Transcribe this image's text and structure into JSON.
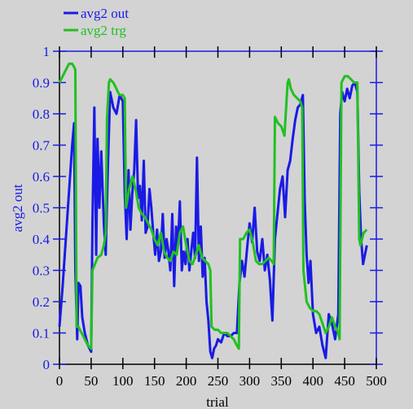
{
  "chart_data": {
    "type": "line",
    "xlabel": "trial",
    "ylabel": "avg2 out",
    "xlim": [
      0,
      500
    ],
    "ylim": [
      0,
      1
    ],
    "x_ticks": [
      0,
      50,
      100,
      150,
      200,
      250,
      300,
      350,
      400,
      450,
      500
    ],
    "y_ticks": [
      0,
      0.1,
      0.2,
      0.3,
      0.4,
      0.5,
      0.6,
      0.7,
      0.8,
      0.9,
      1
    ],
    "x_tick_labels": [
      "0",
      "50",
      "100",
      "150",
      "200",
      "250",
      "300",
      "350",
      "400",
      "450",
      "500"
    ],
    "y_tick_labels": [
      "0",
      "0.1",
      "0.2",
      "0.3",
      "0.4",
      "0.5",
      "0.6",
      "0.7",
      "0.8",
      "0.9",
      "1"
    ],
    "grid": false,
    "legend_position": "top-left",
    "series": [
      {
        "name": "avg2 out",
        "color": "#1a1ae6",
        "x": [
          0,
          5,
          10,
          15,
          20,
          23,
          25,
          28,
          30,
          33,
          36,
          40,
          45,
          50,
          52,
          55,
          58,
          60,
          63,
          66,
          70,
          73,
          76,
          80,
          85,
          90,
          95,
          100,
          103,
          106,
          109,
          112,
          115,
          118,
          121,
          124,
          127,
          130,
          133,
          136,
          139,
          142,
          145,
          148,
          151,
          154,
          157,
          160,
          163,
          166,
          169,
          172,
          175,
          178,
          181,
          184,
          187,
          190,
          193,
          196,
          199,
          202,
          205,
          208,
          211,
          214,
          217,
          220,
          223,
          226,
          229,
          232,
          235,
          238,
          241,
          244,
          247,
          250,
          255,
          260,
          265,
          270,
          275,
          280,
          284,
          288,
          292,
          296,
          300,
          304,
          308,
          312,
          316,
          320,
          324,
          328,
          332,
          336,
          340,
          344,
          348,
          352,
          356,
          360,
          364,
          368,
          372,
          376,
          380,
          384,
          387,
          390,
          393,
          396,
          400,
          405,
          410,
          415,
          420,
          425,
          430,
          435,
          440,
          443,
          446,
          450,
          454,
          458,
          462,
          466,
          470,
          473,
          476,
          479,
          482,
          485
        ],
        "y": [
          0.12,
          0.25,
          0.4,
          0.55,
          0.7,
          0.77,
          0.3,
          0.08,
          0.26,
          0.25,
          0.15,
          0.1,
          0.06,
          0.04,
          0.45,
          0.82,
          0.35,
          0.72,
          0.5,
          0.68,
          0.45,
          0.35,
          0.6,
          0.87,
          0.82,
          0.8,
          0.86,
          0.84,
          0.55,
          0.4,
          0.62,
          0.43,
          0.55,
          0.62,
          0.78,
          0.53,
          0.57,
          0.46,
          0.65,
          0.42,
          0.44,
          0.56,
          0.5,
          0.42,
          0.35,
          0.43,
          0.33,
          0.36,
          0.48,
          0.34,
          0.4,
          0.36,
          0.3,
          0.48,
          0.25,
          0.44,
          0.38,
          0.52,
          0.3,
          0.36,
          0.32,
          0.4,
          0.3,
          0.36,
          0.42,
          0.34,
          0.66,
          0.33,
          0.44,
          0.28,
          0.34,
          0.2,
          0.14,
          0.04,
          0.02,
          0.05,
          0.06,
          0.08,
          0.07,
          0.1,
          0.09,
          0.09,
          0.1,
          0.1,
          0.26,
          0.33,
          0.28,
          0.37,
          0.45,
          0.39,
          0.5,
          0.36,
          0.33,
          0.4,
          0.3,
          0.35,
          0.27,
          0.14,
          0.4,
          0.48,
          0.56,
          0.6,
          0.47,
          0.62,
          0.65,
          0.72,
          0.78,
          0.82,
          0.83,
          0.86,
          0.52,
          0.35,
          0.26,
          0.33,
          0.16,
          0.1,
          0.12,
          0.06,
          0.02,
          0.16,
          0.13,
          0.08,
          0.16,
          0.8,
          0.87,
          0.84,
          0.88,
          0.85,
          0.89,
          0.9,
          0.87,
          0.55,
          0.4,
          0.32,
          0.35,
          0.38
        ]
      },
      {
        "name": "avg2 trg",
        "color": "#22c022",
        "x": [
          0,
          5,
          10,
          15,
          20,
          23,
          25,
          27,
          30,
          35,
          40,
          45,
          50,
          52,
          56,
          60,
          66,
          70,
          73,
          75,
          78,
          80,
          85,
          90,
          92,
          95,
          100,
          103,
          105,
          110,
          115,
          120,
          125,
          130,
          135,
          140,
          145,
          150,
          155,
          160,
          165,
          170,
          175,
          180,
          185,
          190,
          195,
          200,
          205,
          210,
          215,
          220,
          225,
          230,
          235,
          238,
          240,
          245,
          250,
          255,
          260,
          265,
          270,
          275,
          280,
          283,
          285,
          290,
          295,
          300,
          305,
          310,
          315,
          320,
          325,
          330,
          335,
          338,
          340,
          345,
          350,
          355,
          360,
          362,
          365,
          370,
          375,
          380,
          383,
          385,
          390,
          395,
          400,
          405,
          410,
          415,
          420,
          425,
          430,
          435,
          440,
          442,
          445,
          450,
          455,
          460,
          465,
          470,
          473,
          475,
          480,
          485
        ],
        "y": [
          0.9,
          0.92,
          0.94,
          0.96,
          0.96,
          0.95,
          0.94,
          0.12,
          0.12,
          0.1,
          0.08,
          0.06,
          0.05,
          0.3,
          0.32,
          0.34,
          0.35,
          0.38,
          0.42,
          0.78,
          0.9,
          0.91,
          0.9,
          0.88,
          0.87,
          0.86,
          0.86,
          0.85,
          0.5,
          0.56,
          0.6,
          0.56,
          0.5,
          0.48,
          0.47,
          0.45,
          0.43,
          0.4,
          0.38,
          0.42,
          0.36,
          0.34,
          0.33,
          0.36,
          0.35,
          0.42,
          0.44,
          0.38,
          0.33,
          0.32,
          0.35,
          0.38,
          0.34,
          0.33,
          0.32,
          0.3,
          0.12,
          0.11,
          0.11,
          0.1,
          0.1,
          0.1,
          0.09,
          0.08,
          0.06,
          0.05,
          0.4,
          0.4,
          0.42,
          0.43,
          0.39,
          0.33,
          0.32,
          0.32,
          0.33,
          0.34,
          0.33,
          0.32,
          0.79,
          0.77,
          0.76,
          0.73,
          0.9,
          0.91,
          0.88,
          0.86,
          0.85,
          0.84,
          0.82,
          0.3,
          0.2,
          0.18,
          0.17,
          0.17,
          0.16,
          0.13,
          0.1,
          0.12,
          0.15,
          0.12,
          0.1,
          0.08,
          0.9,
          0.92,
          0.92,
          0.91,
          0.9,
          0.9,
          0.4,
          0.38,
          0.42,
          0.43
        ]
      }
    ]
  }
}
